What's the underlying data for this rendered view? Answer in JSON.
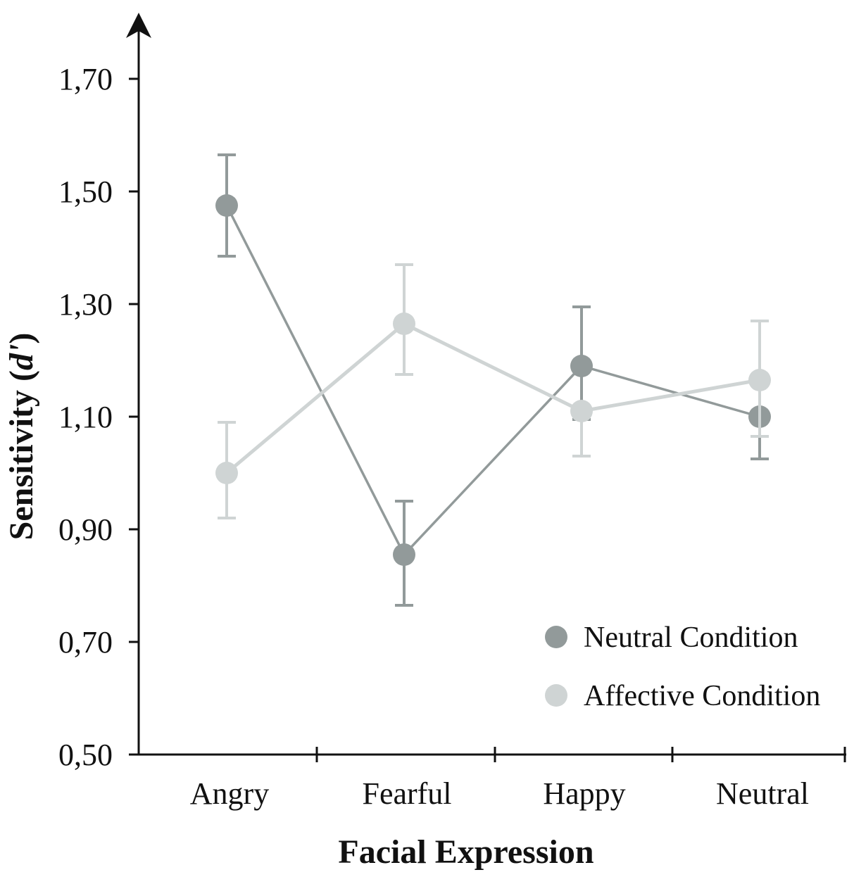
{
  "chart_data": {
    "type": "line",
    "title": "",
    "xlabel": "Facial Expression",
    "ylabel": "Sensitivity (",
    "ylabel_italic": "d'",
    "ylabel_close": ")",
    "categories": [
      "Angry",
      "Fearful",
      "Happy",
      "Neutral"
    ],
    "ylim": [
      0.5,
      1.85
    ],
    "yticks": [
      0.5,
      0.7,
      0.9,
      1.1,
      1.3,
      1.5,
      1.7
    ],
    "ytick_labels": [
      "0,50",
      "0,70",
      "0,90",
      "1,10",
      "1,30",
      "1,50",
      "1,70"
    ],
    "legend_position": "bottom-right",
    "series": [
      {
        "name": "Neutral Condition",
        "color": "#929a9a",
        "values": [
          1.475,
          0.855,
          1.19,
          1.1
        ],
        "error_low": [
          1.385,
          0.765,
          1.095,
          1.025
        ],
        "error_high": [
          1.565,
          0.95,
          1.295,
          1.065
        ]
      },
      {
        "name": "Affective Condition",
        "color": "#cfd4d4",
        "values": [
          1.0,
          1.265,
          1.11,
          1.165
        ],
        "error_low": [
          0.92,
          1.175,
          1.03,
          1.065
        ],
        "error_high": [
          1.09,
          1.37,
          1.11,
          1.27
        ]
      }
    ]
  }
}
